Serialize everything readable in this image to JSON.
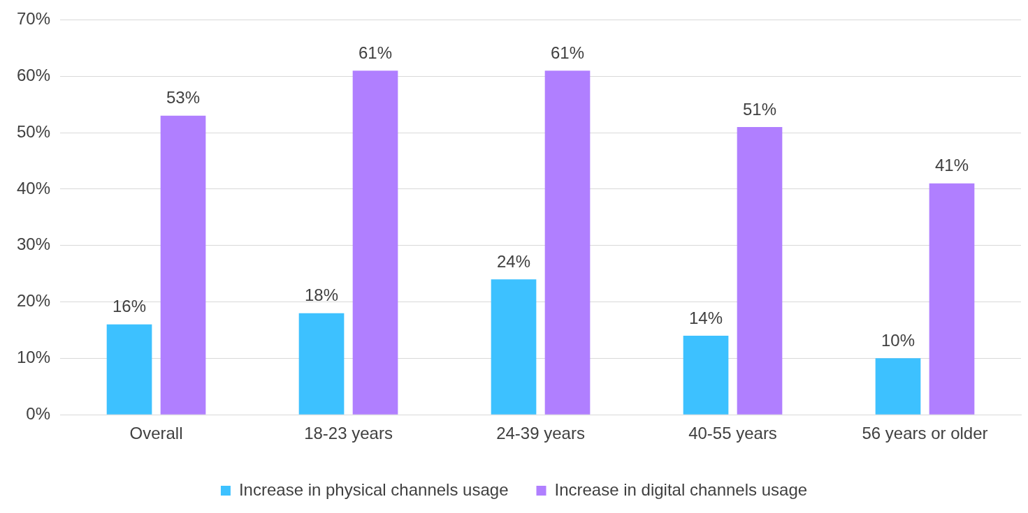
{
  "chart_data": {
    "type": "bar",
    "categories": [
      "Overall",
      "18-23 years",
      "24-39 years",
      "40-55 years",
      "56 years or older"
    ],
    "series": [
      {
        "name": "Increase in physical channels usage",
        "color": "#3dc1ff",
        "values": [
          16,
          18,
          24,
          14,
          10
        ],
        "value_labels": [
          "16%",
          "18%",
          "24%",
          "14%",
          "10%"
        ]
      },
      {
        "name": "Increase in digital channels usage",
        "color": "#b07fff",
        "values": [
          53,
          61,
          61,
          51,
          41
        ],
        "value_labels": [
          "53%",
          "61%",
          "61%",
          "51%",
          "41%"
        ]
      }
    ],
    "ylim": [
      0,
      70
    ],
    "yticks": [
      {
        "value": 0,
        "label": "0%"
      },
      {
        "value": 10,
        "label": "10%"
      },
      {
        "value": 20,
        "label": "20%"
      },
      {
        "value": 30,
        "label": "30%"
      },
      {
        "value": 40,
        "label": "40%"
      },
      {
        "value": 50,
        "label": "50%"
      },
      {
        "value": 60,
        "label": "60%"
      },
      {
        "value": 70,
        "label": "70%"
      }
    ],
    "grid": "y",
    "legend": "bottom"
  }
}
